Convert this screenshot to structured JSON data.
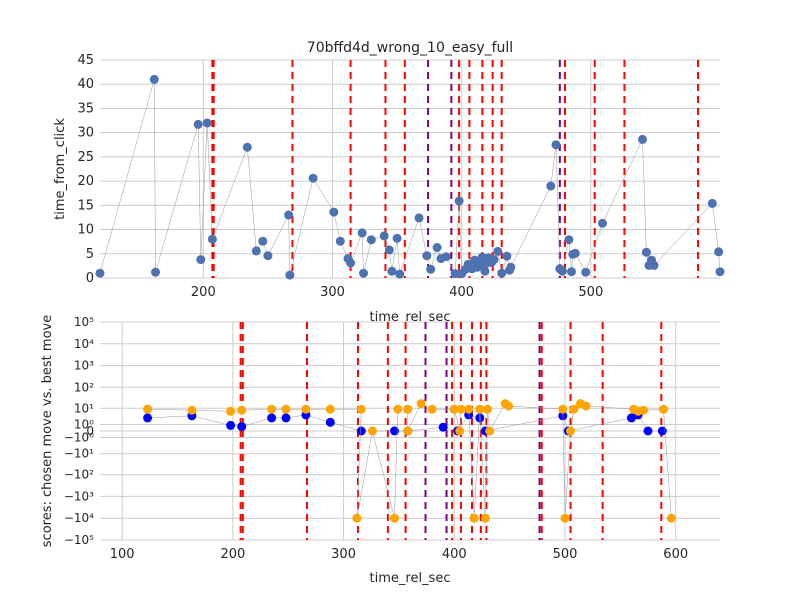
{
  "chart_data": [
    {
      "type": "scatter",
      "title": "70bffd4d_wrong_10_easy_full",
      "xlabel": "time_rel_sec",
      "ylabel": "time_from_click",
      "xlim": [
        120,
        600
      ],
      "ylim": [
        0,
        45
      ],
      "xticks": [
        200,
        300,
        400,
        500
      ],
      "yticks": [
        0,
        5,
        10,
        15,
        20,
        25,
        30,
        35,
        40,
        45
      ],
      "grid": true,
      "series": [
        {
          "color": "#4c72b0",
          "connected": true,
          "points": [
            [
              120,
              1.0
            ],
            [
              162,
              41.0
            ],
            [
              163,
              1.2
            ],
            [
              196,
              31.7
            ],
            [
              198,
              3.8
            ],
            [
              203,
              32.0
            ],
            [
              207,
              8.0
            ],
            [
              234,
              27.0
            ],
            [
              241,
              5.6
            ],
            [
              246,
              7.6
            ],
            [
              250,
              4.6
            ],
            [
              266,
              13.0
            ],
            [
              267,
              0.6
            ],
            [
              285,
              20.6
            ],
            [
              301,
              13.6
            ],
            [
              306,
              7.6
            ],
            [
              312,
              4.0
            ],
            [
              314,
              3.1
            ],
            [
              323,
              9.3
            ],
            [
              324,
              1.0
            ],
            [
              330,
              7.9
            ],
            [
              340,
              8.7
            ],
            [
              344,
              5.8
            ],
            [
              346,
              1.4
            ],
            [
              350,
              8.2
            ],
            [
              352,
              0.8
            ],
            [
              367,
              12.4
            ],
            [
              373,
              4.6
            ],
            [
              376,
              1.8
            ],
            [
              381,
              6.3
            ],
            [
              384,
              4.0
            ],
            [
              388,
              4.4
            ],
            [
              395,
              0.9
            ],
            [
              398,
              15.9
            ],
            [
              400,
              0.9
            ],
            [
              403,
              1.8
            ],
            [
              405,
              2.8
            ],
            [
              408,
              1.9
            ],
            [
              410,
              3.7
            ],
            [
              412,
              2.2
            ],
            [
              414,
              2.8
            ],
            [
              416,
              4.3
            ],
            [
              418,
              1.4
            ],
            [
              419,
              3.0
            ],
            [
              421,
              4.2
            ],
            [
              423,
              3.2
            ],
            [
              425,
              3.8
            ],
            [
              428,
              5.5
            ],
            [
              431,
              1.0
            ],
            [
              435,
              4.5
            ],
            [
              437,
              1.6
            ],
            [
              438,
              2.2
            ],
            [
              469,
              19.0
            ],
            [
              473,
              27.5
            ],
            [
              476,
              1.9
            ],
            [
              478,
              1.4
            ],
            [
              483,
              7.9
            ],
            [
              485,
              1.3
            ],
            [
              486,
              4.9
            ],
            [
              488,
              5.1
            ],
            [
              496,
              1.2
            ],
            [
              509,
              11.3
            ],
            [
              540,
              28.6
            ],
            [
              543,
              5.3
            ],
            [
              545,
              2.6
            ],
            [
              547,
              3.7
            ],
            [
              549,
              2.6
            ],
            [
              594,
              15.4
            ],
            [
              599,
              5.4
            ],
            [
              600,
              1.3
            ]
          ]
        }
      ],
      "vlines": [
        {
          "x": 207,
          "color": "#ff0000"
        },
        {
          "x": 208,
          "color": "#ff0000"
        },
        {
          "x": 269,
          "color": "#ff0000"
        },
        {
          "x": 314,
          "color": "#ff0000"
        },
        {
          "x": 341,
          "color": "#ff0000"
        },
        {
          "x": 356,
          "color": "#ff0000"
        },
        {
          "x": 374,
          "color": "#800080"
        },
        {
          "x": 392,
          "color": "#800080"
        },
        {
          "x": 398,
          "color": "#ff0000"
        },
        {
          "x": 406,
          "color": "#ff0000"
        },
        {
          "x": 416,
          "color": "#ff0000"
        },
        {
          "x": 424,
          "color": "#ff0000"
        },
        {
          "x": 431,
          "color": "#ff0000"
        },
        {
          "x": 476,
          "color": "#800080"
        },
        {
          "x": 480,
          "color": "#ff0000"
        },
        {
          "x": 503,
          "color": "#ff0000"
        },
        {
          "x": 526,
          "color": "#ff0000"
        },
        {
          "x": 583,
          "color": "#ff0000"
        }
      ]
    },
    {
      "type": "scatter",
      "title": "",
      "xlabel": "time_rel_sec",
      "ylabel": "scores: chosen move vs. best move",
      "yscale": "symlog",
      "xlim": [
        80,
        640
      ],
      "ylim": [
        -100000,
        100000
      ],
      "xticks": [
        100,
        200,
        300,
        400,
        500,
        600
      ],
      "yticks": [
        -100000,
        -10000,
        -1000,
        -100,
        -10,
        -1,
        0,
        1,
        10,
        100,
        1000,
        10000,
        100000
      ],
      "grid": true,
      "series": [
        {
          "color": "#0000ff",
          "connected": true,
          "points": [
            [
              123,
              3
            ],
            [
              163,
              4
            ],
            [
              198,
              0.8
            ],
            [
              208,
              0.6
            ],
            [
              235,
              3
            ],
            [
              248,
              3
            ],
            [
              266,
              4.5
            ],
            [
              288,
              1.5
            ],
            [
              316,
              0
            ],
            [
              346,
              0
            ],
            [
              358,
              0
            ],
            [
              390,
              0.5
            ],
            [
              403,
              0
            ],
            [
              413,
              4.5
            ],
            [
              423,
              3
            ],
            [
              428,
              0
            ],
            [
              498,
              4
            ],
            [
              503,
              0
            ],
            [
              560,
              3
            ],
            [
              566,
              4.5
            ],
            [
              575,
              0
            ],
            [
              588,
              0
            ]
          ]
        },
        {
          "color": "#ffa500",
          "connected": true,
          "points": [
            [
              123,
              9
            ],
            [
              163,
              8
            ],
            [
              198,
              7
            ],
            [
              208,
              8
            ],
            [
              235,
              9
            ],
            [
              248,
              9
            ],
            [
              266,
              9
            ],
            [
              288,
              9
            ],
            [
              316,
              9
            ],
            [
              312,
              -10000
            ],
            [
              326,
              0
            ],
            [
              346,
              -10000
            ],
            [
              349,
              9
            ],
            [
              358,
              9
            ],
            [
              358,
              0
            ],
            [
              370,
              17
            ],
            [
              380,
              9
            ],
            [
              400,
              9
            ],
            [
              405,
              0
            ],
            [
              406,
              9
            ],
            [
              413,
              9
            ],
            [
              418,
              -10000
            ],
            [
              423,
              9
            ],
            [
              428,
              -10000
            ],
            [
              430,
              9
            ],
            [
              432,
              0
            ],
            [
              446,
              17
            ],
            [
              449,
              13
            ],
            [
              498,
              9
            ],
            [
              500,
              -10000
            ],
            [
              505,
              0
            ],
            [
              508,
              9
            ],
            [
              514,
              17
            ],
            [
              519,
              13
            ],
            [
              562,
              9
            ],
            [
              566,
              7
            ],
            [
              571,
              8
            ],
            [
              589,
              9
            ],
            [
              596,
              -10000
            ]
          ]
        }
      ],
      "vlines": [
        {
          "x": 207,
          "color": "#ff0000"
        },
        {
          "x": 209,
          "color": "#ff0000"
        },
        {
          "x": 267,
          "color": "#ff0000"
        },
        {
          "x": 313,
          "color": "#ff0000"
        },
        {
          "x": 340,
          "color": "#ff0000"
        },
        {
          "x": 356,
          "color": "#ff0000"
        },
        {
          "x": 374,
          "color": "#800080"
        },
        {
          "x": 393,
          "color": "#800080"
        },
        {
          "x": 398,
          "color": "#ff0000"
        },
        {
          "x": 406,
          "color": "#ff0000"
        },
        {
          "x": 416,
          "color": "#ff0000"
        },
        {
          "x": 424,
          "color": "#ff0000"
        },
        {
          "x": 429,
          "color": "#ff0000"
        },
        {
          "x": 477,
          "color": "#800080"
        },
        {
          "x": 479,
          "color": "#ff0000"
        },
        {
          "x": 505,
          "color": "#ff0000"
        },
        {
          "x": 534,
          "color": "#ff0000"
        },
        {
          "x": 587,
          "color": "#ff0000"
        }
      ]
    }
  ]
}
